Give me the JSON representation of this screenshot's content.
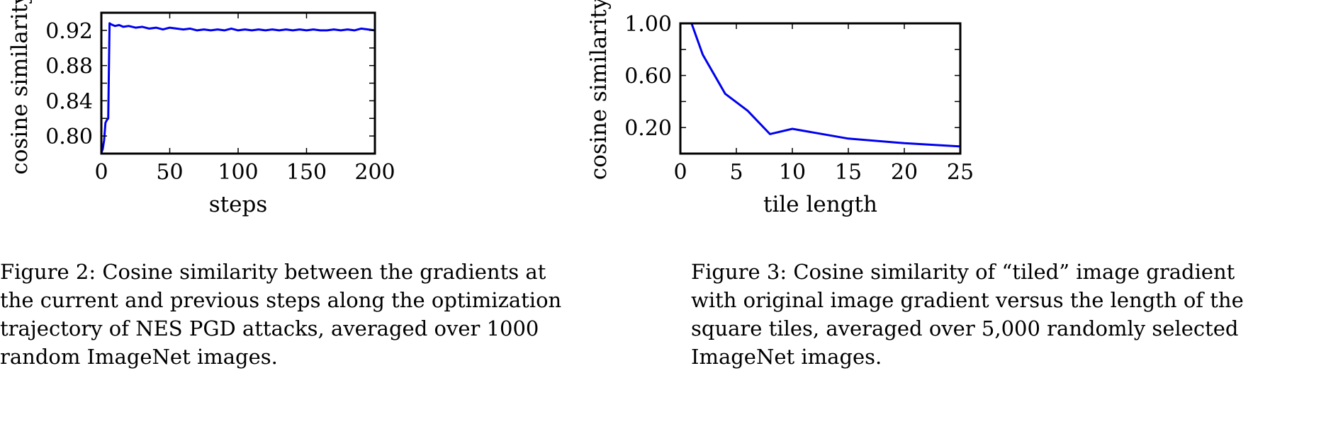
{
  "chart_data": [
    {
      "type": "line",
      "xlabel": "steps",
      "ylabel": "cosine similarity",
      "xlim": [
        0,
        200
      ],
      "ylim": [
        0.78,
        0.94
      ],
      "xticks": [
        0,
        50,
        100,
        150,
        200
      ],
      "xtick_labels": [
        "0",
        "50",
        "100",
        "150",
        "200"
      ],
      "yticks": [
        0.8,
        0.84,
        0.88,
        0.92
      ],
      "ytick_labels": [
        "0.80",
        "0.84",
        "0.88",
        "0.92"
      ],
      "grid": false,
      "series": [
        {
          "color": "#0000ee",
          "x": [
            0,
            1,
            2,
            3,
            4,
            5,
            6,
            7,
            10,
            13,
            16,
            20,
            25,
            30,
            35,
            40,
            45,
            50,
            55,
            60,
            65,
            70,
            75,
            80,
            85,
            90,
            95,
            100,
            105,
            110,
            115,
            120,
            125,
            130,
            135,
            140,
            145,
            150,
            155,
            160,
            165,
            170,
            175,
            180,
            185,
            190,
            195,
            200
          ],
          "y": [
            0.781,
            0.785,
            0.795,
            0.815,
            0.818,
            0.82,
            0.928,
            0.927,
            0.925,
            0.926,
            0.924,
            0.925,
            0.923,
            0.924,
            0.922,
            0.923,
            0.921,
            0.923,
            0.922,
            0.921,
            0.922,
            0.92,
            0.921,
            0.92,
            0.921,
            0.92,
            0.922,
            0.92,
            0.921,
            0.92,
            0.921,
            0.92,
            0.921,
            0.92,
            0.921,
            0.92,
            0.921,
            0.92,
            0.921,
            0.92,
            0.92,
            0.921,
            0.92,
            0.921,
            0.92,
            0.922,
            0.921,
            0.92
          ]
        }
      ]
    },
    {
      "type": "line",
      "xlabel": "tile length",
      "ylabel": "cosine similarity",
      "xlim": [
        0,
        25
      ],
      "ylim": [
        0,
        1.0
      ],
      "xticks": [
        0,
        5,
        10,
        15,
        20,
        25
      ],
      "xtick_labels": [
        "0",
        "5",
        "10",
        "15",
        "20",
        "25"
      ],
      "yticks": [
        0.2,
        0.6,
        1.0
      ],
      "ytick_labels": [
        "0.20",
        "0.60",
        "1.00"
      ],
      "minor_yticks": [
        0.4,
        0.8
      ],
      "grid": false,
      "series": [
        {
          "color": "#0000ee",
          "x": [
            1,
            2,
            4,
            6,
            8,
            10,
            15,
            20,
            25
          ],
          "y": [
            1.0,
            0.76,
            0.46,
            0.33,
            0.15,
            0.19,
            0.115,
            0.08,
            0.055
          ]
        }
      ]
    }
  ],
  "captions": [
    {
      "lines": [
        "Figure 2: Cosine similarity between the gradients at",
        "the current and previous steps along the optimization",
        "trajectory of NES PGD attacks, averaged over 1000",
        "random ImageNet images."
      ]
    },
    {
      "lines": [
        "Figure 3: Cosine similarity of “tiled” image gradient",
        "with original image gradient versus the length of the",
        "square tiles, averaged over 5,000 randomly selected",
        "ImageNet images."
      ]
    }
  ]
}
